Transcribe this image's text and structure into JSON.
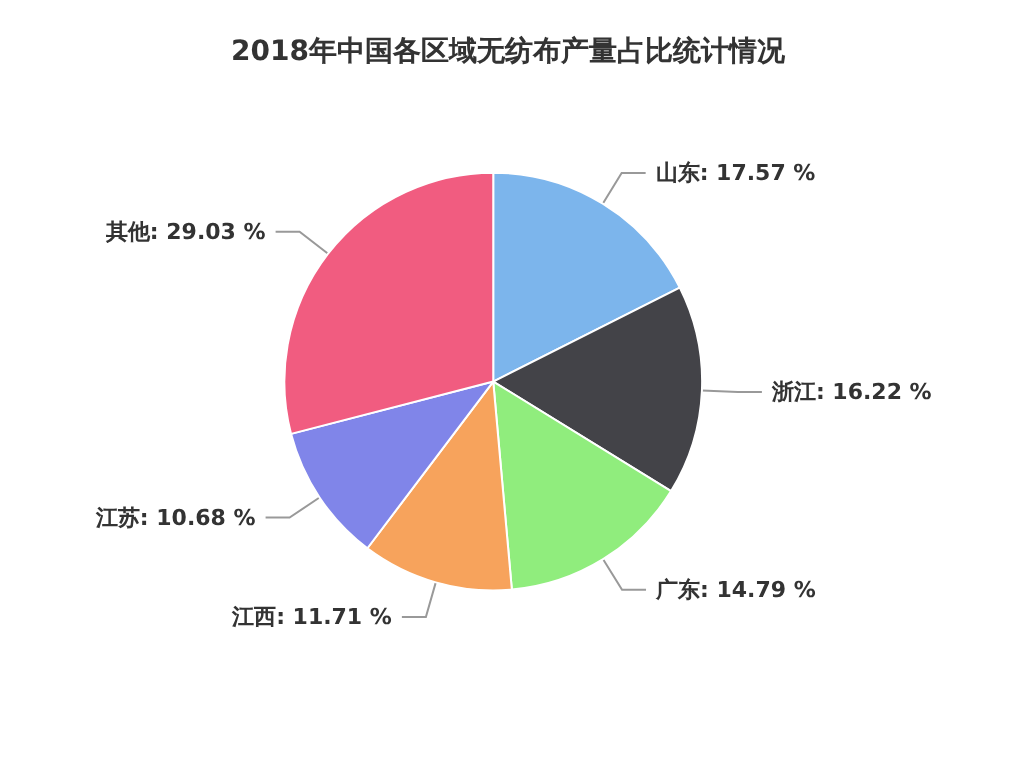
{
  "chart_data": {
    "type": "pie",
    "title": "2018年中国各区域无纺布产量占比统计情况",
    "categories": [
      "山东",
      "浙江",
      "广东",
      "江西",
      "江苏",
      "其他"
    ],
    "values": [
      17.57,
      16.22,
      14.79,
      11.71,
      10.68,
      29.03
    ],
    "value_labels": [
      "17.57 %",
      "16.22 %",
      "14.79 %",
      "11.71 %",
      "10.68 %",
      "29.03 %"
    ],
    "colors": [
      "#7cb5ec",
      "#434348",
      "#90ed7d",
      "#f7a35c",
      "#8085e9",
      "#f15c80"
    ],
    "legend": false
  }
}
